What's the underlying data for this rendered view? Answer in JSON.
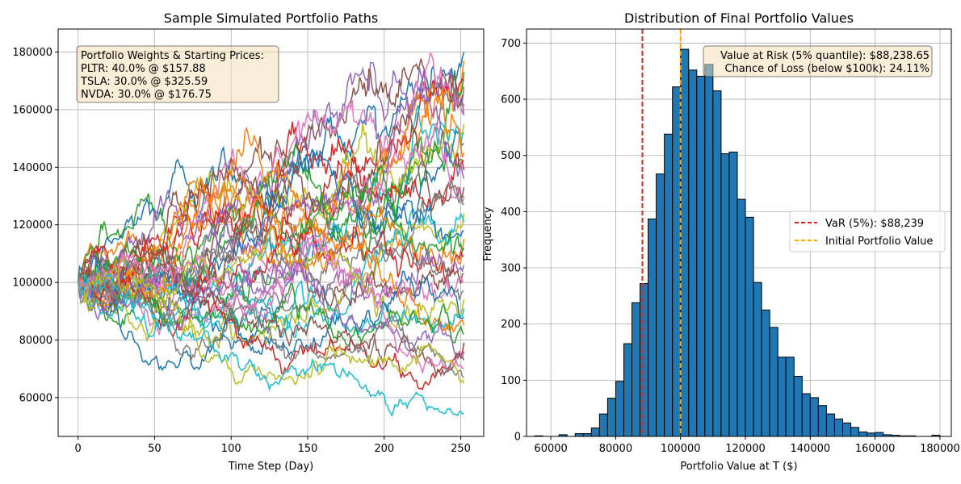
{
  "chart_data": [
    {
      "type": "line",
      "title": "Sample Simulated Portfolio Paths",
      "xlabel": "Time Step (Day)",
      "ylabel": "",
      "xlim": [
        -13,
        265
      ],
      "ylim": [
        46500,
        188000
      ],
      "xticks": [
        0,
        50,
        100,
        150,
        200,
        250
      ],
      "yticks": [
        60000,
        80000,
        100000,
        120000,
        140000,
        160000,
        180000
      ],
      "grid": true,
      "steps": 252,
      "start_value": 100000,
      "annotation": {
        "lines": [
          "Portfolio Weights & Starting Prices:",
          "PLTR: 40.0% @ $157.88",
          "TSLA: 30.0% @ $325.59",
          "NVDA: 30.0% @ $176.75"
        ],
        "placement": "top-left"
      },
      "palette": [
        "#1f77b4",
        "#ff7f0e",
        "#2ca02c",
        "#d62728",
        "#9467bd",
        "#8c564b",
        "#e377c2",
        "#7f7f7f",
        "#bcbd22",
        "#17becf"
      ],
      "path_end_values": [
        180000,
        177000,
        173000,
        170000,
        168000,
        165000,
        162000,
        158000,
        155000,
        152000,
        148000,
        145000,
        142000,
        139000,
        136000,
        133000,
        130000,
        127000,
        124000,
        121000,
        118000,
        115000,
        112000,
        109000,
        106000,
        103000,
        100000,
        97000,
        94000,
        91000,
        88000,
        85000,
        82000,
        79000,
        76000,
        73000,
        70000,
        67000,
        65000,
        54500
      ]
    },
    {
      "type": "bar",
      "title": "Distribution of Final Portfolio Values",
      "xlabel": "Portfolio Value at T ($)",
      "ylabel": "Frequency",
      "xlim": [
        52500,
        183500
      ],
      "ylim": [
        0,
        725
      ],
      "xticks": [
        60000,
        80000,
        100000,
        120000,
        140000,
        160000,
        180000
      ],
      "yticks": [
        0,
        100,
        200,
        300,
        400,
        500,
        600,
        700
      ],
      "grid": true,
      "bin_start": 55000,
      "bin_width": 2500,
      "counts": [
        1,
        0,
        0,
        3,
        0,
        5,
        5,
        15,
        40,
        68,
        98,
        165,
        238,
        272,
        387,
        467,
        538,
        622,
        689,
        652,
        641,
        662,
        615,
        503,
        506,
        422,
        390,
        274,
        225,
        194,
        141,
        141,
        107,
        76,
        69,
        55,
        40,
        31,
        24,
        16,
        8,
        6,
        7,
        3,
        2,
        1,
        1,
        0,
        0,
        2
      ],
      "bar_color": "#1f77b4",
      "vlines": [
        {
          "label": "VaR (5%): $88,239",
          "x": 88238.65,
          "color": "#d62728"
        },
        {
          "label": "Initial Portfolio Value",
          "x": 100000,
          "color": "#ffa500"
        }
      ],
      "annotation": {
        "lines": [
          "Value at Risk (5% quantile): $88,238.65",
          "Chance of Loss (below $100k): 24.11%"
        ],
        "placement": "top-right"
      },
      "legend_placement": "center-right"
    }
  ]
}
